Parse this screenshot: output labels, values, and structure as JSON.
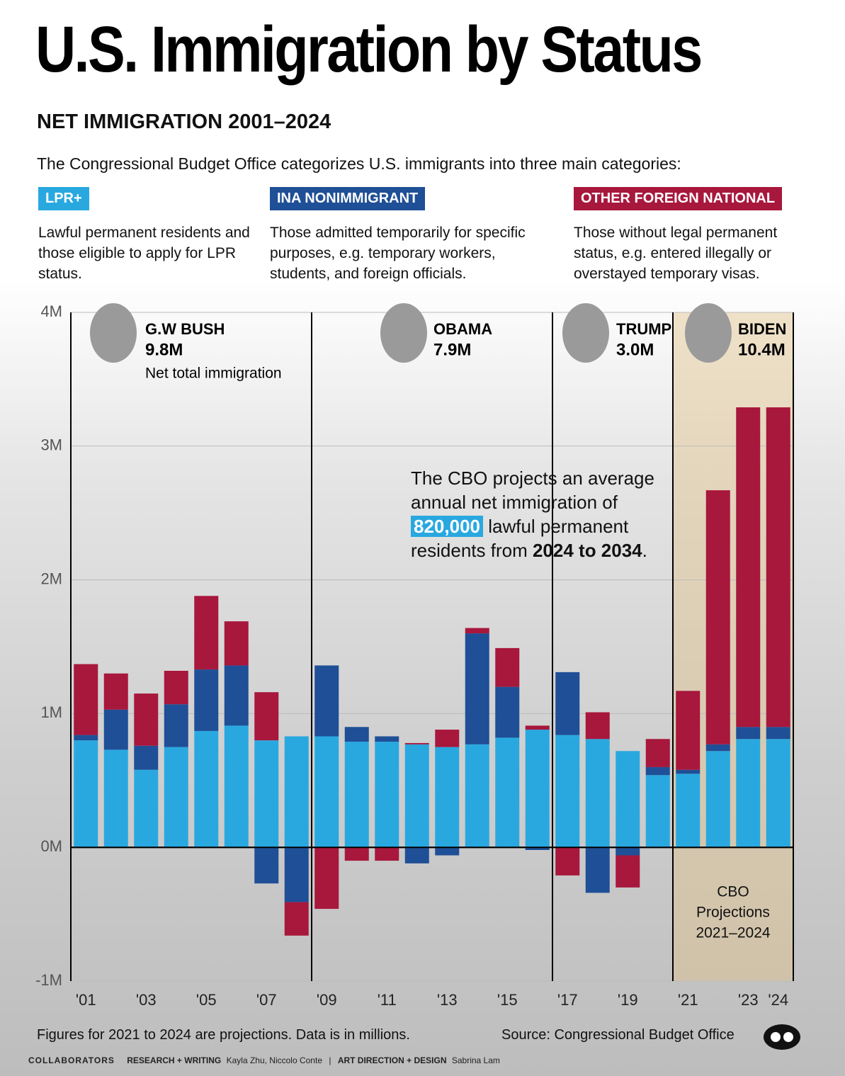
{
  "title": "U.S. Immigration by Status",
  "subtitle": "NET IMMIGRATION 2001–2024",
  "intro": "The Congressional Budget Office categorizes U.S. immigrants into three main categories:",
  "descriptions": [
    "Lawful permanent residents and those eligible to apply for LPR status.",
    "Those admitted temporarily for specific purposes, e.g. temporary workers, students, and foreign officials.",
    "Those without legal permanent status, e.g. entered illegally or overstayed temporary visas."
  ],
  "chart_data": {
    "type": "stacked_bar",
    "categories": [
      "'01",
      null,
      "'03",
      null,
      "'05",
      null,
      "'07",
      null,
      "'09",
      null,
      "'11",
      null,
      "'13",
      null,
      "'15",
      null,
      "'17",
      null,
      "'19",
      null,
      "'21",
      null,
      "'23",
      "'24"
    ],
    "series": [
      {
        "name": "LPR+",
        "color": "#29a8e0",
        "values": [
          0.8,
          0.73,
          0.58,
          0.75,
          0.87,
          0.91,
          0.8,
          0.83,
          0.83,
          0.79,
          0.79,
          0.77,
          0.75,
          0.77,
          0.82,
          0.88,
          0.84,
          0.81,
          0.72,
          0.54,
          0.55,
          0.72,
          0.81,
          0.81
        ]
      },
      {
        "name": "INA NONIMMIGRANT",
        "color": "#1f4f96",
        "values": [
          0.04,
          0.3,
          0.18,
          0.32,
          0.46,
          0.45,
          -0.27,
          -0.41,
          0.53,
          0.11,
          0.04,
          -0.12,
          -0.06,
          0.83,
          0.38,
          -0.02,
          0.47,
          -0.34,
          -0.06,
          0.06,
          0.03,
          0.05,
          0.09,
          0.09
        ]
      },
      {
        "name": "OTHER FOREIGN NATIONAL",
        "color": "#a8173c",
        "values": [
          0.53,
          0.27,
          0.39,
          0.25,
          0.55,
          0.33,
          0.36,
          -0.25,
          -0.46,
          -0.1,
          -0.1,
          0.01,
          0.13,
          0.04,
          0.29,
          0.03,
          -0.21,
          0.2,
          -0.24,
          0.21,
          0.59,
          1.9,
          2.39,
          2.39
        ]
      }
    ],
    "ylim": [
      -1,
      4
    ],
    "yticks": [
      {
        "value": -1,
        "label": "-1M"
      },
      {
        "value": 0,
        "label": "0M"
      },
      {
        "value": 1,
        "label": "1M"
      },
      {
        "value": 2,
        "label": "2M"
      },
      {
        "value": 3,
        "label": "3M"
      },
      {
        "value": 4,
        "label": "4M"
      }
    ],
    "grid": true,
    "presidents": [
      {
        "name": "G.W BUSH",
        "total": "9.8M"
      },
      {
        "name": "OBAMA",
        "total": "7.9M"
      },
      {
        "name": "TRUMP",
        "total": "3.0M"
      },
      {
        "name": "BIDEN",
        "total": "10.4M"
      }
    ],
    "net_total_label": "Net total immigration",
    "projection_label": [
      "CBO",
      "Projections",
      "2021–2024"
    ],
    "callout": {
      "text_1": "The CBO projects an average annual net immigration of",
      "highlight": "820,000",
      "text_2": "lawful permanent residents from",
      "bold": "2024 to 2034",
      "end": "."
    }
  },
  "footer": {
    "note": "Figures for 2021 to 2024 are projections. Data is in millions.",
    "source": "Source: Congressional Budget Office",
    "collaborators": "COLLABORATORS",
    "research_label": "RESEARCH + WRITING",
    "research_names": "Kayla Zhu, Niccolo Conte",
    "design_label": "ART DIRECTION + DESIGN",
    "design_names": "Sabrina Lam"
  }
}
